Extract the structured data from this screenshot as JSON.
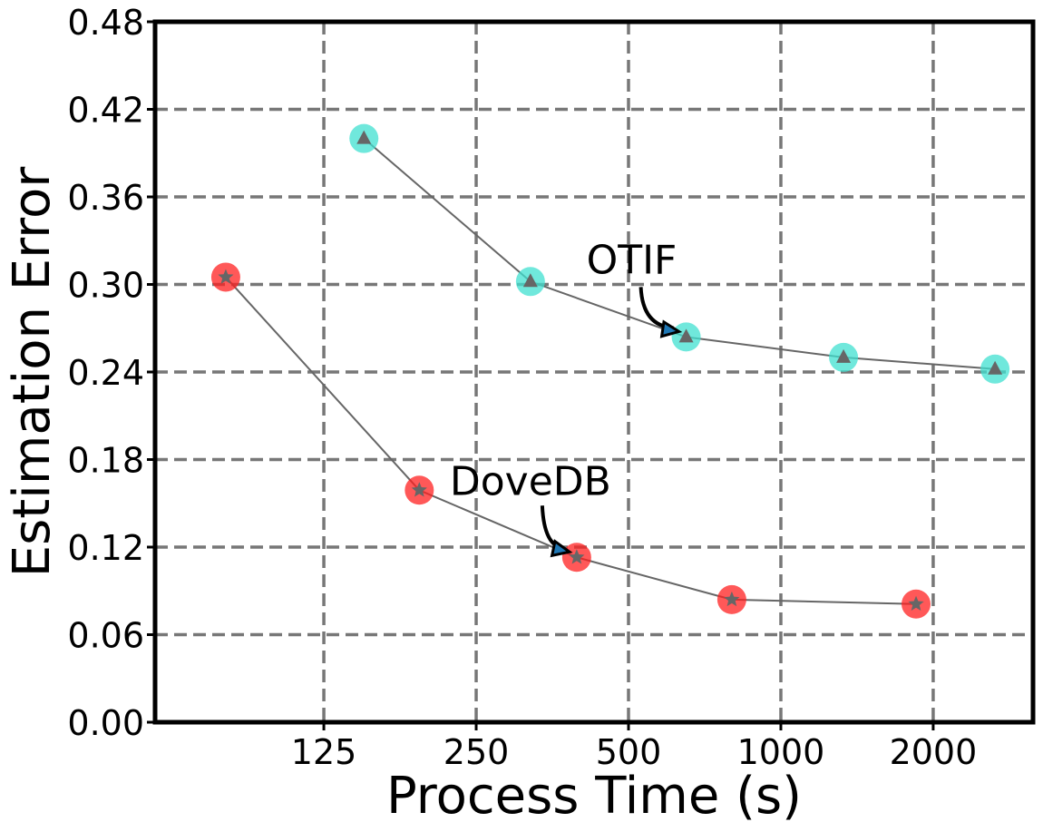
{
  "chart_data": {
    "type": "scatter",
    "title": "",
    "xlabel": "Process Time (s)",
    "ylabel": "Estimation Error",
    "x_scale": "log2",
    "xlim": [
      58,
      3150
    ],
    "ylim": [
      0,
      0.48
    ],
    "x_ticks": [
      125,
      250,
      500,
      1000,
      2000
    ],
    "x_tick_labels": [
      "125",
      "250",
      "500",
      "1000",
      "2000"
    ],
    "y_ticks": [
      0,
      0.06,
      0.12,
      0.18,
      0.24,
      0.3,
      0.36,
      0.42,
      0.48
    ],
    "y_tick_labels": [
      "0.00",
      "0.06",
      "0.12",
      "0.18",
      "0.24",
      "0.30",
      "0.36",
      "0.42",
      "0.48"
    ],
    "grid": true,
    "series": [
      {
        "name": "OTIF",
        "x": [
          150,
          320,
          650,
          1330,
          2650
        ],
        "y": [
          0.4,
          0.302,
          0.264,
          0.25,
          0.242
        ],
        "color": "#40E0D0",
        "marker": "triangle"
      },
      {
        "name": "DoveDB",
        "x": [
          80,
          193,
          395,
          800,
          1850
        ],
        "y": [
          0.305,
          0.159,
          0.113,
          0.084,
          0.081
        ],
        "color": "#FF2020",
        "marker": "star"
      }
    ],
    "annotations": [
      {
        "text": "OTIF",
        "target_series": 0,
        "target_index": 2
      },
      {
        "text": "DoveDB",
        "target_series": 1,
        "target_index": 2
      }
    ]
  }
}
